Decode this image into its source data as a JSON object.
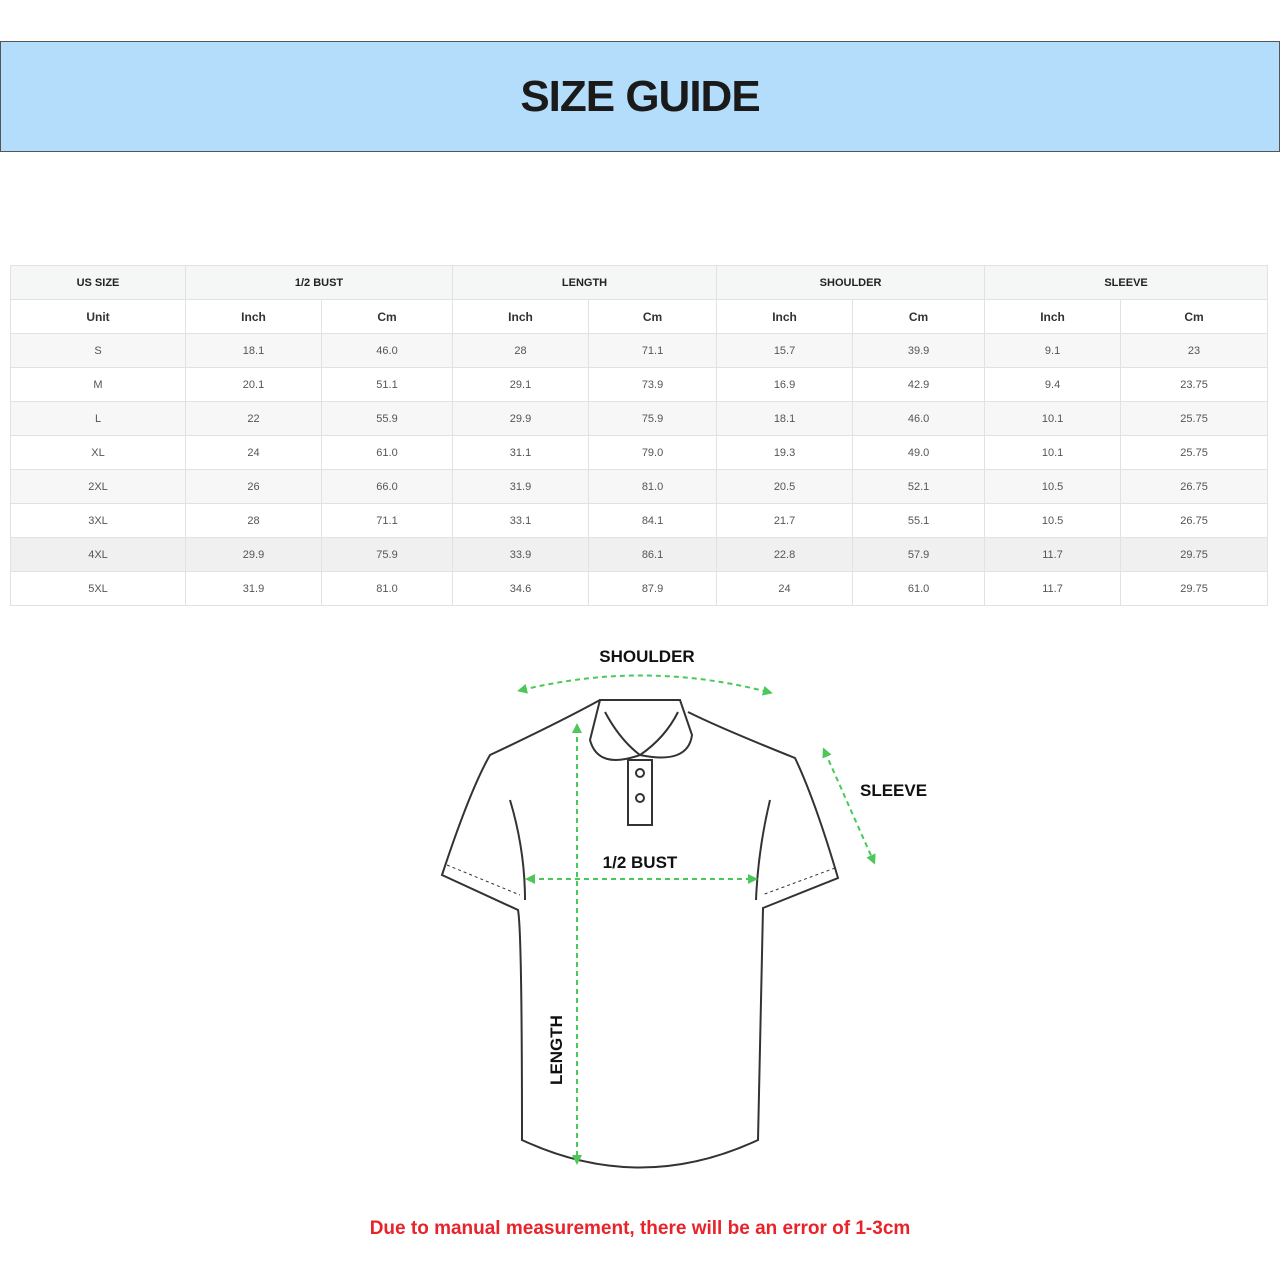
{
  "title": "SIZE GUIDE",
  "table": {
    "group_headers": [
      "US SIZE",
      "1/2 BUST",
      "LENGTH",
      "SHOULDER",
      "SLEEVE"
    ],
    "unit_row": [
      "Unit",
      "Inch",
      "Cm",
      "Inch",
      "Cm",
      "Inch",
      "Cm",
      "Inch",
      "Cm"
    ],
    "rows": [
      [
        "S",
        "18.1",
        "46.0",
        "28",
        "71.1",
        "15.7",
        "39.9",
        "9.1",
        "23"
      ],
      [
        "M",
        "20.1",
        "51.1",
        "29.1",
        "73.9",
        "16.9",
        "42.9",
        "9.4",
        "23.75"
      ],
      [
        "L",
        "22",
        "55.9",
        "29.9",
        "75.9",
        "18.1",
        "46.0",
        "10.1",
        "25.75"
      ],
      [
        "XL",
        "24",
        "61.0",
        "31.1",
        "79.0",
        "19.3",
        "49.0",
        "10.1",
        "25.75"
      ],
      [
        "2XL",
        "26",
        "66.0",
        "31.9",
        "81.0",
        "20.5",
        "52.1",
        "10.5",
        "26.75"
      ],
      [
        "3XL",
        "28",
        "71.1",
        "33.1",
        "84.1",
        "21.7",
        "55.1",
        "10.5",
        "26.75"
      ],
      [
        "4XL",
        "29.9",
        "75.9",
        "33.9",
        "86.1",
        "22.8",
        "57.9",
        "11.7",
        "29.75"
      ],
      [
        "5XL",
        "31.9",
        "81.0",
        "34.6",
        "87.9",
        "24",
        "61.0",
        "11.7",
        "29.75"
      ]
    ]
  },
  "diagram": {
    "shoulder": "SHOULDER",
    "sleeve": "SLEEVE",
    "bust": "1/2 BUST",
    "length": "LENGTH",
    "arrow_color": "#4cc85a"
  },
  "note": "Due to manual measurement, there will be an error of 1-3cm"
}
